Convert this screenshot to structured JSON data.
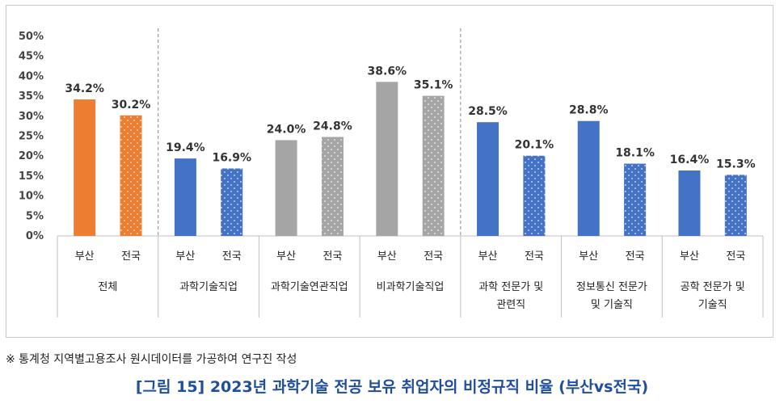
{
  "chart_data": {
    "type": "bar",
    "title": "",
    "ylabel": "",
    "xlabel": "",
    "ylim": [
      0,
      50
    ],
    "yticks": [
      "0%",
      "5%",
      "10%",
      "15%",
      "20%",
      "25%",
      "30%",
      "35%",
      "40%",
      "45%",
      "50%"
    ],
    "grid": false,
    "groups": [
      {
        "label_lines": [
          "전체"
        ],
        "bars": [
          {
            "label": "부산",
            "value": 34.2,
            "value_label": "34.2%",
            "color": "#ED7D31",
            "pattern": "solid"
          },
          {
            "label": "전국",
            "value": 30.2,
            "value_label": "30.2%",
            "color": "#ED7D31",
            "pattern": "dotted"
          }
        ]
      },
      {
        "label_lines": [
          "과학기술직업"
        ],
        "bars": [
          {
            "label": "부산",
            "value": 19.4,
            "value_label": "19.4%",
            "color": "#4472C4",
            "pattern": "solid"
          },
          {
            "label": "전국",
            "value": 16.9,
            "value_label": "16.9%",
            "color": "#4472C4",
            "pattern": "dotted"
          }
        ]
      },
      {
        "label_lines": [
          "과학기술연관직업"
        ],
        "bars": [
          {
            "label": "부산",
            "value": 24.0,
            "value_label": "24.0%",
            "color": "#A5A5A5",
            "pattern": "solid"
          },
          {
            "label": "전국",
            "value": 24.8,
            "value_label": "24.8%",
            "color": "#A5A5A5",
            "pattern": "dotted"
          }
        ]
      },
      {
        "label_lines": [
          "비과학기술직업"
        ],
        "bars": [
          {
            "label": "부산",
            "value": 38.6,
            "value_label": "38.6%",
            "color": "#A5A5A5",
            "pattern": "solid"
          },
          {
            "label": "전국",
            "value": 35.1,
            "value_label": "35.1%",
            "color": "#A5A5A5",
            "pattern": "dotted"
          }
        ]
      },
      {
        "label_lines": [
          "과학 전문가 및",
          "관련직"
        ],
        "bars": [
          {
            "label": "부산",
            "value": 28.5,
            "value_label": "28.5%",
            "color": "#4472C4",
            "pattern": "solid"
          },
          {
            "label": "전국",
            "value": 20.1,
            "value_label": "20.1%",
            "color": "#4472C4",
            "pattern": "dotted"
          }
        ]
      },
      {
        "label_lines": [
          "정보통신 전문가",
          "및 기술직"
        ],
        "bars": [
          {
            "label": "부산",
            "value": 28.8,
            "value_label": "28.8%",
            "color": "#4472C4",
            "pattern": "solid"
          },
          {
            "label": "전국",
            "value": 18.1,
            "value_label": "18.1%",
            "color": "#4472C4",
            "pattern": "dotted"
          }
        ]
      },
      {
        "label_lines": [
          "공학 전문가 및",
          "기술직"
        ],
        "bars": [
          {
            "label": "부산",
            "value": 16.4,
            "value_label": "16.4%",
            "color": "#4472C4",
            "pattern": "solid"
          },
          {
            "label": "전국",
            "value": 15.3,
            "value_label": "15.3%",
            "color": "#4472C4",
            "pattern": "dotted"
          }
        ]
      }
    ]
  },
  "source_note": "※ 통계청 지역별고용조사 원시데이터를 가공하여 연구진 작성",
  "figure_caption": "[그림 15] 2023년 과학기술 전공 보유 취업자의 비정규직 비율 (부산vs전국)"
}
